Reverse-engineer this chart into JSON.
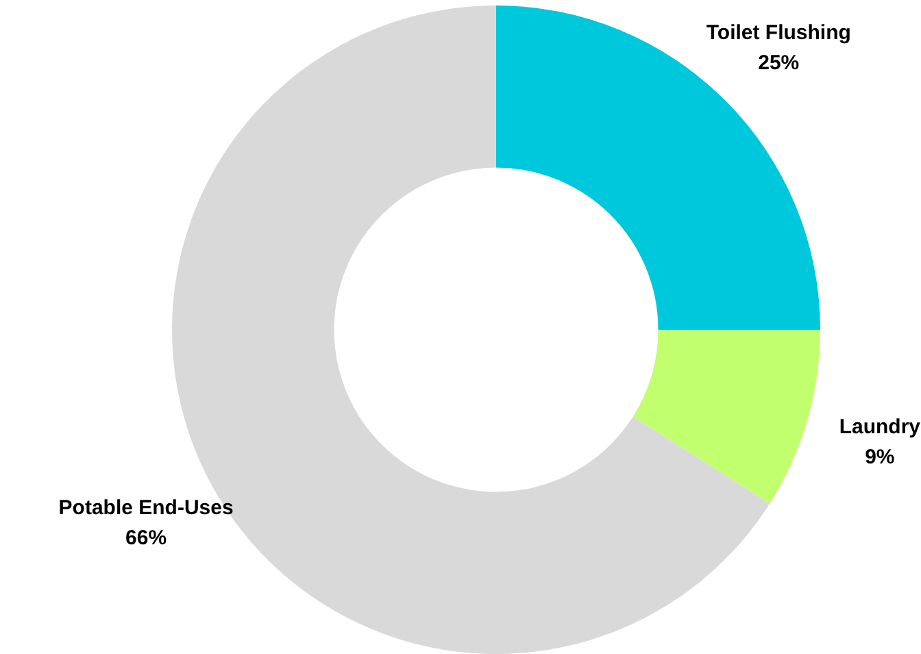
{
  "chart_data": {
    "type": "donut",
    "categories": [
      "Toilet Flushing",
      "Laundry",
      "Potable End-Uses"
    ],
    "values": [
      25,
      9,
      66
    ],
    "colors": [
      "#00c8dc",
      "#c2ff6e",
      "#d9d9d9"
    ],
    "value_labels": [
      "25%",
      "9%",
      "66%"
    ],
    "legend": false
  }
}
